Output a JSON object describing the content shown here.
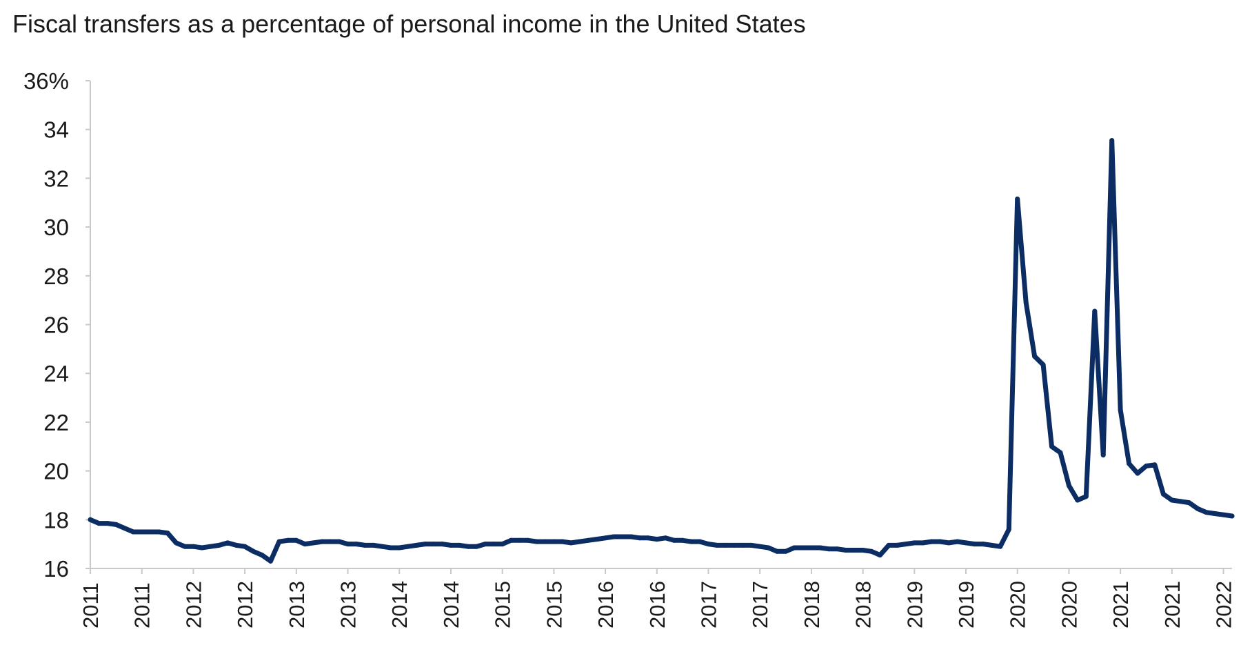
{
  "chart_data": {
    "type": "line",
    "title": "Fiscal transfers as a percentage of personal income in the United States",
    "xlabel": "",
    "ylabel": "",
    "ylim": [
      16,
      36
    ],
    "y_ticks": [
      16,
      18,
      20,
      22,
      24,
      26,
      28,
      30,
      32,
      34,
      36
    ],
    "y_tick_labels": [
      "16",
      "18",
      "20",
      "22",
      "24",
      "26",
      "28",
      "30",
      "32",
      "34",
      "36%"
    ],
    "x_tick_labels": [
      "2011",
      "2011",
      "2012",
      "2012",
      "2013",
      "2013",
      "2014",
      "2014",
      "2015",
      "2015",
      "2016",
      "2016",
      "2017",
      "2017",
      "2018",
      "2018",
      "2019",
      "2019",
      "2020",
      "2020",
      "2021",
      "2021",
      "2022"
    ],
    "months_per_tick": 6,
    "grid": false,
    "line_color": "#0b2d63",
    "series": [
      {
        "values": [
          18.0,
          17.85,
          17.85,
          17.8,
          17.65,
          17.5,
          17.5,
          17.5,
          17.5,
          17.45,
          17.05,
          16.9,
          16.9,
          16.85,
          16.9,
          16.95,
          17.05,
          16.95,
          16.9,
          16.7,
          16.55,
          16.3,
          17.1,
          17.15,
          17.15,
          17.0,
          17.05,
          17.1,
          17.1,
          17.1,
          17.0,
          17.0,
          16.95,
          16.95,
          16.9,
          16.85,
          16.85,
          16.9,
          16.95,
          17.0,
          17.0,
          17.0,
          16.95,
          16.95,
          16.9,
          16.9,
          17.0,
          17.0,
          17.0,
          17.15,
          17.15,
          17.15,
          17.1,
          17.1,
          17.1,
          17.1,
          17.05,
          17.1,
          17.15,
          17.2,
          17.25,
          17.3,
          17.3,
          17.3,
          17.25,
          17.25,
          17.2,
          17.25,
          17.15,
          17.15,
          17.1,
          17.1,
          17.0,
          16.95,
          16.95,
          16.95,
          16.95,
          16.95,
          16.9,
          16.85,
          16.7,
          16.7,
          16.85,
          16.85,
          16.85,
          16.85,
          16.8,
          16.8,
          16.75,
          16.75,
          16.75,
          16.7,
          16.55,
          16.95,
          16.95,
          17.0,
          17.05,
          17.05,
          17.1,
          17.1,
          17.05,
          17.1,
          17.05,
          17.0,
          17.0,
          16.95,
          16.9,
          17.6,
          31.15,
          26.9,
          24.7,
          24.35,
          21.0,
          20.75,
          19.4,
          18.8,
          18.95,
          26.55,
          20.65,
          33.55,
          22.5,
          20.3,
          19.9,
          20.2,
          20.25,
          19.05,
          18.8,
          18.75,
          18.7,
          18.45,
          18.3,
          18.25,
          18.2,
          18.15
        ]
      }
    ]
  }
}
